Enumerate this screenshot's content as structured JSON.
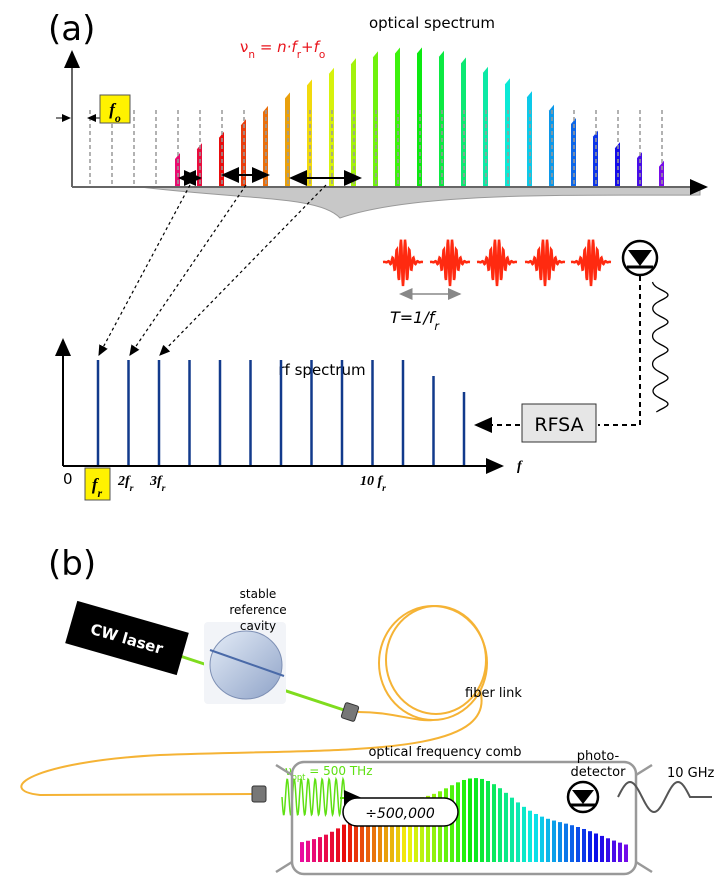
{
  "panel_a": {
    "label": "(a)",
    "optical_title": "optical spectrum",
    "equation": [
      {
        "text": "ν"
      },
      {
        "text": "n",
        "sub": true
      },
      {
        "text": " = n·f"
      },
      {
        "text": "r",
        "sub": true
      },
      {
        "text": "+f"
      },
      {
        "text": "o",
        "sub": true
      }
    ],
    "offset_label": [
      {
        "text": "f"
      },
      {
        "text": "o",
        "sub": true
      }
    ],
    "period_label": [
      {
        "text": "T=1/f"
      },
      {
        "text": "r",
        "sub": true
      }
    ],
    "rf_title": "rf spectrum",
    "rfsa": "RFSA",
    "zero": "0",
    "fr_label": [
      {
        "text": "f"
      },
      {
        "text": "r",
        "sub": true
      }
    ],
    "two_fr": [
      {
        "text": "2f"
      },
      {
        "text": "r",
        "sub": true
      }
    ],
    "three_fr": [
      {
        "text": "3f"
      },
      {
        "text": "r",
        "sub": true
      }
    ],
    "ten_fr": [
      {
        "text": "10 f"
      },
      {
        "text": "r",
        "sub": true
      }
    ],
    "f_axis": "f"
  },
  "panel_b": {
    "label": "(b)",
    "cavity": [
      "stable",
      "reference",
      "cavity"
    ],
    "laser": "CW laser",
    "fiber": "fiber link",
    "comb": "optical frequency comb",
    "divider": "÷500,000",
    "nu_opt": [
      {
        "text": "ν"
      },
      {
        "text": "opt",
        "sub": true
      },
      {
        "text": " = 500 THz"
      }
    ],
    "detector": [
      "photo-",
      "detector"
    ],
    "rf_out": "10 GHz"
  }
}
